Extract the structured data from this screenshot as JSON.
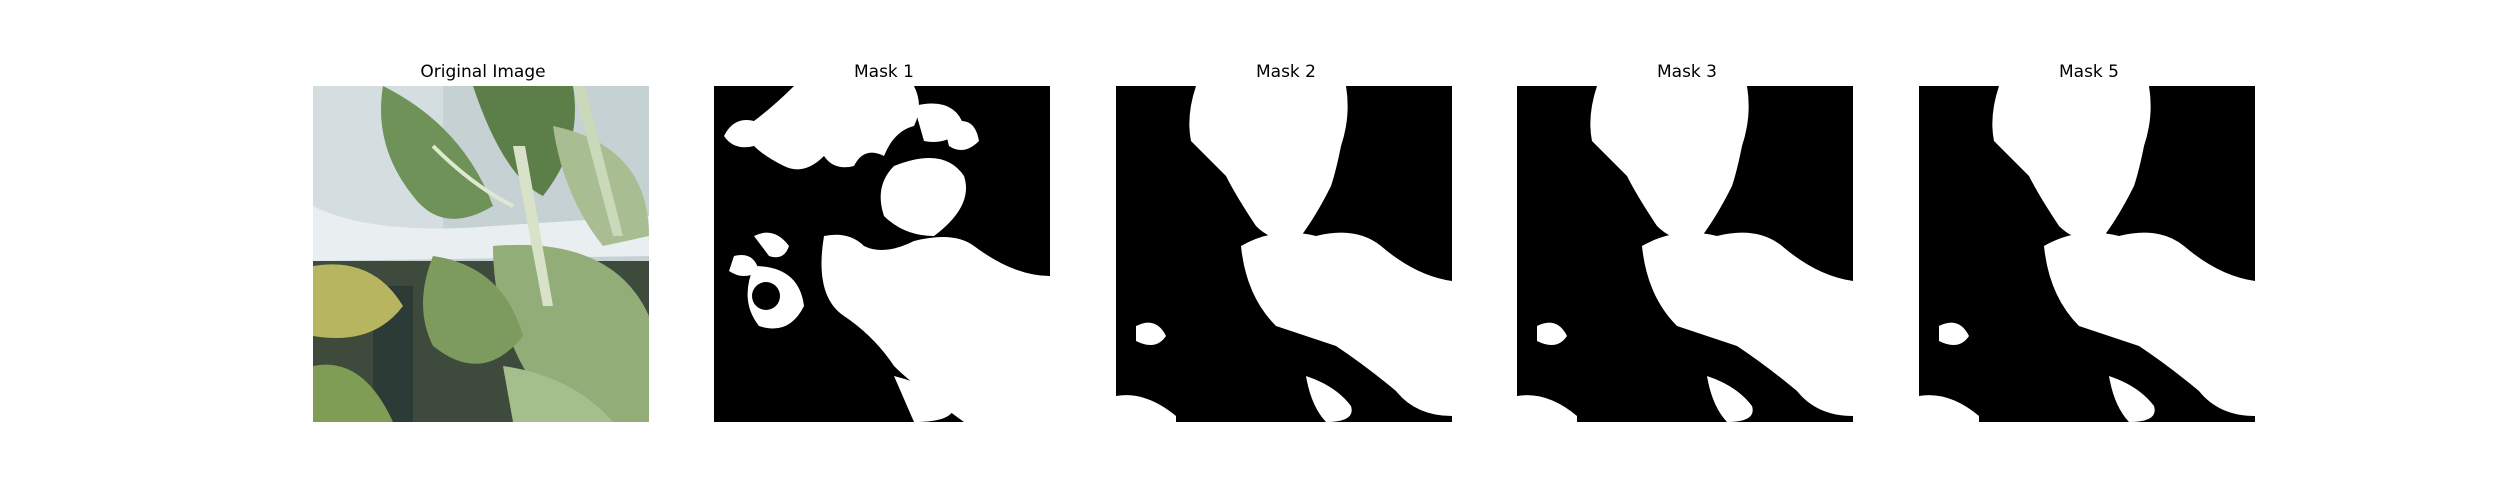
{
  "panels": [
    {
      "title": "Original Image"
    },
    {
      "title": "Mask 1"
    },
    {
      "title": "Mask 2"
    },
    {
      "title": "Mask 3"
    },
    {
      "title": "Mask 5"
    }
  ],
  "colors": {
    "background": "#ffffff",
    "mask_foreground": "#ffffff",
    "mask_background": "#000000",
    "leaf_dark": "#4e6e3e",
    "leaf_light": "#b9c9a4",
    "wall": "#c9d4d6"
  }
}
